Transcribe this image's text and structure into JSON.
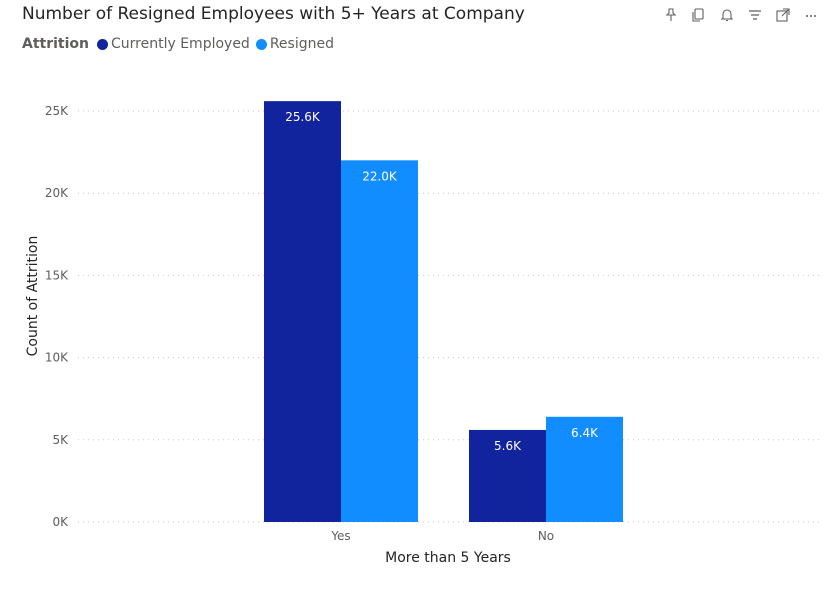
{
  "visual": {
    "title": "Number of Resigned Employees with 5+ Years at Company",
    "toolbar_icons": [
      "pin-icon",
      "copy-icon",
      "bell-icon",
      "filter-icon",
      "focus-mode-icon",
      "more-options-icon"
    ]
  },
  "legend": {
    "title": "Attrition",
    "placement": "top-left"
  },
  "chart_data": {
    "type": "bar",
    "title": "Number of Resigned Employees with 5+ Years at Company",
    "xlabel": "More than 5 Years",
    "ylabel": "Count of Attrition",
    "categories": [
      "Yes",
      "No"
    ],
    "series": [
      {
        "name": "Currently Employed",
        "color": "#12239E",
        "values": [
          25600,
          5600
        ],
        "labels": [
          "25.6K",
          "5.6K"
        ]
      },
      {
        "name": "Resigned",
        "color": "#118DFF",
        "values": [
          22000,
          6400
        ],
        "labels": [
          "22.0K",
          "6.4K"
        ]
      }
    ],
    "ylim": [
      0,
      25000
    ],
    "yticks": [
      0,
      5000,
      10000,
      15000,
      20000,
      25000
    ],
    "ytick_labels": [
      "0K",
      "5K",
      "10K",
      "15K",
      "20K",
      "25K"
    ],
    "grid": true,
    "legend_position": "top-left"
  }
}
